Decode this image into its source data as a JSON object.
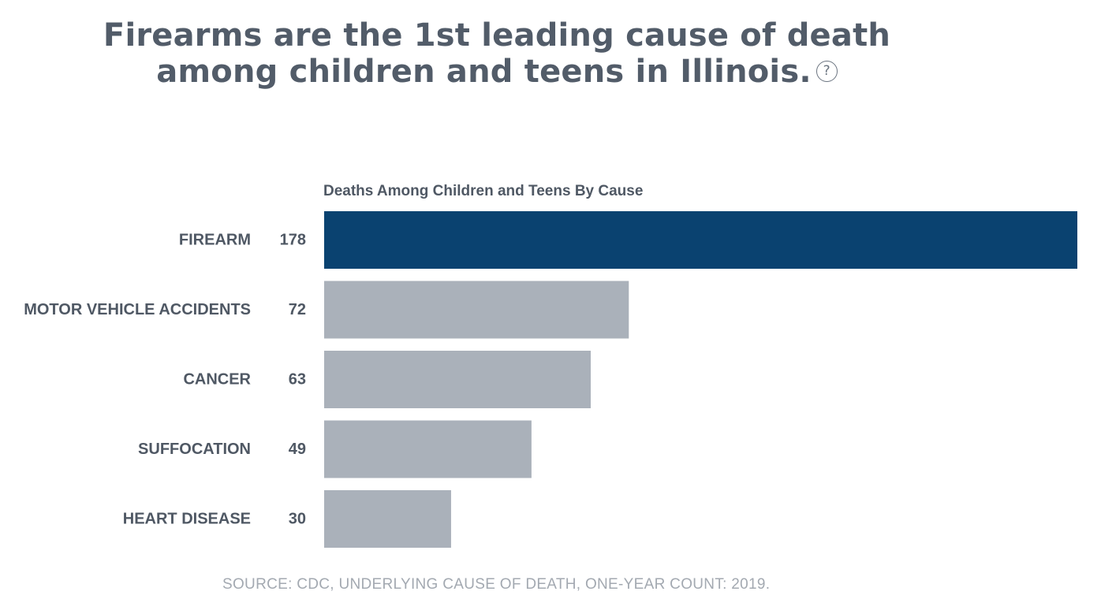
{
  "header": {
    "title_line1": "Firearms are the 1st leading cause of death",
    "title_line2": "among children and teens in Illinois.",
    "help_icon": "question-circle-icon",
    "help_glyph": "?"
  },
  "chart_data": {
    "type": "bar",
    "orientation": "horizontal",
    "title": "Deaths Among Children and Teens By Cause",
    "categories": [
      "FIREARM",
      "MOTOR VEHICLE ACCIDENTS",
      "CANCER",
      "SUFFOCATION",
      "HEART DISEASE"
    ],
    "values": [
      178,
      72,
      63,
      49,
      30
    ],
    "highlight_index": 0,
    "highlight_color": "#0a4270",
    "bar_color": "#aab1ba",
    "grid": false,
    "legend": "none",
    "xlim": [
      0,
      178
    ]
  },
  "footer": {
    "source": "SOURCE: CDC, UNDERLYING CAUSE OF DEATH, ONE-YEAR COUNT: 2019."
  }
}
